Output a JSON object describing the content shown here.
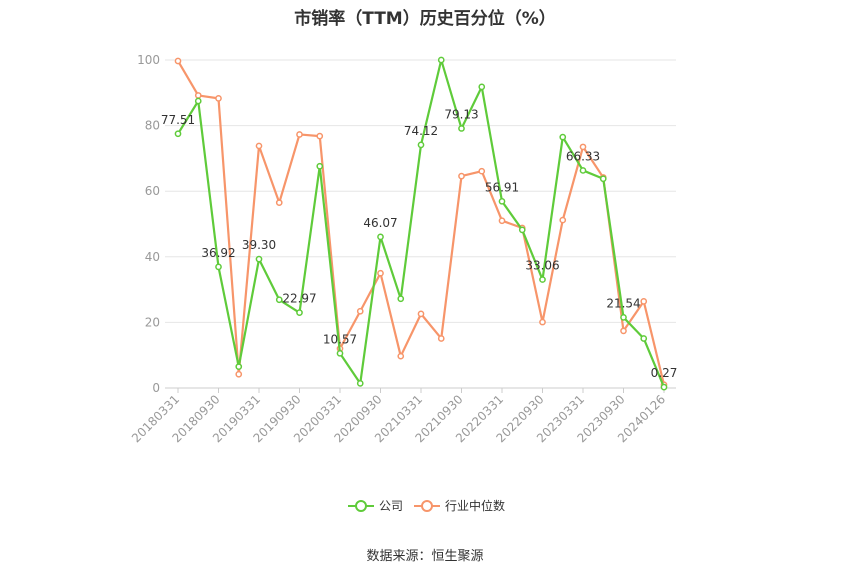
{
  "chart_data": {
    "type": "line",
    "title": "市销率（TTM）历史百分位（%）",
    "source": "数据来源：恒生聚源",
    "ylim": [
      0,
      100
    ],
    "yticks": [
      "0",
      "20",
      "40",
      "60",
      "80",
      "100"
    ],
    "xtick_labels": [
      "20180331",
      "20180930",
      "20190331",
      "20190930",
      "20200331",
      "20200930",
      "20210331",
      "20210930",
      "20220331",
      "20220930",
      "20230331",
      "20230930",
      "20240126"
    ],
    "x": [
      "20180331",
      "20180630",
      "20180930",
      "20181231",
      "20190331",
      "20190630",
      "20190930",
      "20191231",
      "20200331",
      "20200630",
      "20200930",
      "20201231",
      "20210331",
      "20210630",
      "20210930",
      "20211231",
      "20220331",
      "20220630",
      "20220930",
      "20221231",
      "20230331",
      "20230630",
      "20230930",
      "20231231",
      "20240126"
    ],
    "grid": true,
    "legend_position": "bottom",
    "series": [
      {
        "name": "公司",
        "color": "#5fcb3a",
        "values": [
          77.51,
          87.5,
          36.92,
          6.5,
          39.3,
          26.9,
          22.97,
          67.6,
          10.57,
          1.4,
          46.07,
          27.2,
          74.12,
          100.0,
          79.13,
          91.8,
          56.91,
          48.2,
          33.06,
          76.5,
          66.33,
          63.8,
          21.54,
          15.1,
          0.27
        ],
        "labels": [
          "77.51",
          null,
          "36.92",
          null,
          "39.30",
          null,
          "22.97",
          null,
          "10.57",
          null,
          "46.07",
          null,
          "74.12",
          null,
          "79.13",
          null,
          "56.91",
          null,
          "33.06",
          null,
          "66.33",
          null,
          "21.54",
          null,
          "0.27"
        ]
      },
      {
        "name": "行业中位数",
        "color": "#f7956a",
        "values": [
          99.7,
          89.2,
          88.3,
          4.2,
          73.8,
          56.5,
          77.3,
          76.8,
          12.0,
          23.4,
          35.0,
          9.7,
          22.6,
          15.1,
          64.6,
          66.1,
          51.0,
          48.8,
          20.1,
          51.2,
          73.5,
          64.2,
          17.4,
          26.4,
          1.0
        ]
      }
    ]
  }
}
